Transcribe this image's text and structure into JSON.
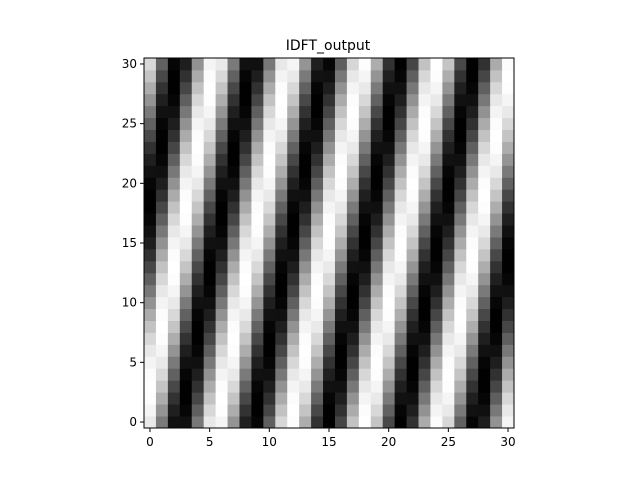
{
  "chart_data": {
    "type": "heatmap",
    "title": "IDFT_output",
    "xlabel": "",
    "ylabel": "",
    "colormap": "gray",
    "grid": false,
    "n_cols": 31,
    "n_rows": 31,
    "xlim": [
      -0.5,
      30.5
    ],
    "ylim": [
      -0.5,
      30.5
    ],
    "x_ticks": [
      0,
      5,
      10,
      15,
      20,
      25,
      30
    ],
    "y_ticks": [
      0,
      5,
      10,
      15,
      20,
      25,
      30
    ],
    "x_tick_labels": [
      "0",
      "5",
      "10",
      "15",
      "20",
      "25",
      "30"
    ],
    "y_tick_labels": [
      "0",
      "5",
      "10",
      "15",
      "20",
      "25",
      "30"
    ],
    "pattern": "0.5 + 0.5*cos(2*pi*(k*x + m*y)/31 + phase)",
    "k": 5,
    "m": -1,
    "phase": 0.6
  }
}
